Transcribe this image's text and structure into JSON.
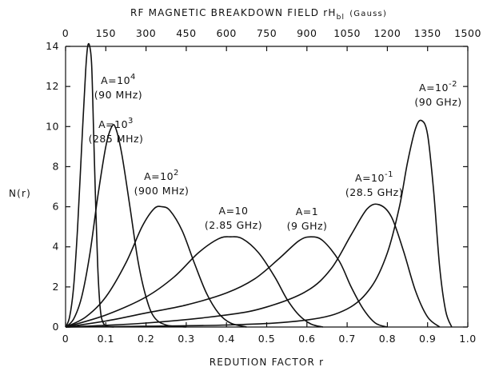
{
  "chart_data": {
    "type": "line",
    "title": "",
    "xlabel": "REDUTION FACTOR r",
    "ylabel": "N(r)",
    "top_axis_label": "RF MAGNETIC BREAKDOWN FIELD rH",
    "top_axis_label_sub": "bl",
    "top_axis_label_unit": "(Gauss)",
    "xlim": [
      0,
      1.0
    ],
    "ylim": [
      0,
      14
    ],
    "x_ticks": [
      0,
      0.1,
      0.2,
      0.3,
      0.4,
      0.5,
      0.6,
      0.7,
      0.8,
      0.9,
      1.0
    ],
    "x_tick_labels": [
      "0",
      "0.1",
      "0.2",
      "0.3",
      "0.4",
      "0.5",
      "0.6",
      "0.7",
      "0.8",
      "0.9",
      "1.0"
    ],
    "y_ticks": [
      0,
      2,
      4,
      6,
      8,
      10,
      12,
      14
    ],
    "y_tick_labels": [
      "0",
      "2",
      "4",
      "6",
      "8",
      "10",
      "12",
      "14"
    ],
    "top_ticks": [
      0,
      150,
      300,
      450,
      600,
      750,
      900,
      1050,
      1200,
      1350,
      1500
    ],
    "top_tick_labels": [
      "0",
      "150",
      "300",
      "450",
      "600",
      "750",
      "900",
      "1050",
      "1200",
      "1350",
      "1500"
    ],
    "top_axis_max": 1500,
    "grid": false,
    "series": [
      {
        "name": "A=10^4 (90 MHz)",
        "label_line1": "A=10",
        "label_exp": "4",
        "label_line2": "(90 MHz)",
        "x": [
          0,
          0.01,
          0.02,
          0.03,
          0.04,
          0.05,
          0.055,
          0.06,
          0.065,
          0.07,
          0.075,
          0.08,
          0.085,
          0.09,
          0.1,
          0.12
        ],
        "y": [
          0,
          0.5,
          2.0,
          5.0,
          9.0,
          12.8,
          14.0,
          14.0,
          13.0,
          9.5,
          6.0,
          3.0,
          1.2,
          0.4,
          0.05,
          0
        ]
      },
      {
        "name": "A=10^3 (285 MHz)",
        "label_line1": "A=10",
        "label_exp": "3",
        "label_line2": "(285 MHz)",
        "x": [
          0,
          0.02,
          0.04,
          0.06,
          0.08,
          0.1,
          0.115,
          0.125,
          0.14,
          0.16,
          0.18,
          0.2,
          0.22,
          0.25,
          0.3
        ],
        "y": [
          0,
          0.4,
          1.5,
          3.6,
          6.5,
          9.0,
          10.0,
          9.9,
          8.6,
          6.0,
          3.3,
          1.5,
          0.5,
          0.1,
          0
        ]
      },
      {
        "name": "A=10^2 (900 MHz)",
        "label_line1": "A=10",
        "label_exp": "2",
        "label_line2": "(900 MHz)",
        "x": [
          0,
          0.05,
          0.1,
          0.15,
          0.19,
          0.22,
          0.24,
          0.26,
          0.29,
          0.32,
          0.35,
          0.38,
          0.41,
          0.45
        ],
        "y": [
          0,
          0.5,
          1.5,
          3.2,
          5.0,
          5.9,
          6.0,
          5.8,
          4.8,
          3.2,
          1.7,
          0.7,
          0.2,
          0
        ]
      },
      {
        "name": "A=10 (2.85 GHz)",
        "label_line1": "A=10",
        "label_exp": "",
        "label_line2": "(2.85 GHz)",
        "x": [
          0,
          0.1,
          0.2,
          0.27,
          0.33,
          0.38,
          0.41,
          0.44,
          0.48,
          0.52,
          0.55,
          0.58,
          0.61,
          0.64
        ],
        "y": [
          0,
          0.6,
          1.5,
          2.5,
          3.7,
          4.4,
          4.5,
          4.4,
          3.7,
          2.5,
          1.4,
          0.6,
          0.15,
          0
        ]
      },
      {
        "name": "A=1 (9 GHz)",
        "label_line1": "A=1",
        "label_exp": "",
        "label_line2": "(9 GHz)",
        "x": [
          0,
          0.1,
          0.2,
          0.3,
          0.4,
          0.47,
          0.53,
          0.58,
          0.61,
          0.64,
          0.68,
          0.71,
          0.74,
          0.77,
          0.8
        ],
        "y": [
          0,
          0.3,
          0.7,
          1.1,
          1.7,
          2.4,
          3.4,
          4.3,
          4.5,
          4.3,
          3.3,
          2.0,
          0.9,
          0.2,
          0
        ]
      },
      {
        "name": "A=10^-1 (28.5 GHz)",
        "label_line1": "A=10",
        "label_exp": "-1",
        "label_line2": "(28.5 GHz)",
        "x": [
          0,
          0.2,
          0.4,
          0.5,
          0.6,
          0.66,
          0.71,
          0.75,
          0.78,
          0.81,
          0.84,
          0.87,
          0.9,
          0.93
        ],
        "y": [
          0,
          0.2,
          0.6,
          1.0,
          1.8,
          2.9,
          4.6,
          5.9,
          6.1,
          5.5,
          3.8,
          1.8,
          0.5,
          0
        ]
      },
      {
        "name": "A=10^-2 (90 GHz)",
        "label_line1": "A=10",
        "label_exp": "-2",
        "label_line2": "(90 GHz)",
        "x": [
          0,
          0.4,
          0.6,
          0.7,
          0.76,
          0.8,
          0.83,
          0.85,
          0.87,
          0.885,
          0.9,
          0.915,
          0.93,
          0.945,
          0.96
        ],
        "y": [
          0,
          0.1,
          0.35,
          0.9,
          2.0,
          3.7,
          6.0,
          8.2,
          9.9,
          10.3,
          9.6,
          6.8,
          3.0,
          0.8,
          0
        ]
      }
    ]
  }
}
